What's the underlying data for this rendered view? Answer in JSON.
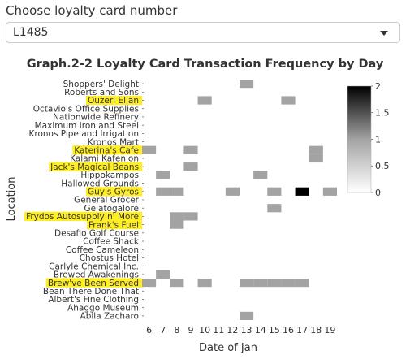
{
  "select": {
    "label": "Choose loyalty card number",
    "value": "L1485"
  },
  "colors": {
    "highlight": "#ffee22",
    "cell_low": "#a3a3a3",
    "cell_high": "#000000",
    "text": "#333333"
  },
  "chart_data": {
    "type": "heatmap",
    "title": "Graph.2-2 Loyalty Card Transaction Frequency by Day",
    "xlabel": "Date of Jan",
    "ylabel": "Location",
    "x": [
      6,
      7,
      8,
      9,
      10,
      11,
      12,
      13,
      14,
      15,
      16,
      17,
      18,
      19
    ],
    "xlim": [
      5.5,
      19.5
    ],
    "y": [
      "Shoppers' Delight",
      "Roberts and Sons",
      "Ouzeri Elian",
      "Octavio's Office Supplies",
      "Nationwide Refinery",
      "Maximum Iron and Steel",
      "Kronos Pipe and Irrigation",
      "Kronos Mart",
      "Katerina's Cafe",
      "Kalami Kafenion",
      "Jack's Magical Beans",
      "Hippokampos",
      "Hallowed Grounds",
      "Guy's Gyros",
      "General Grocer",
      "Gelatogalore",
      "Frydos Autosupply n' More",
      "Frank's Fuel",
      "Desafio Golf Course",
      "Coffee Shack",
      "Coffee Cameleon",
      "Chostus Hotel",
      "Carlyle Chemical Inc.",
      "Brewed Awakenings",
      "Brew've Been Served",
      "Bean There Done That",
      "Albert's Fine Clothing",
      "Ahaggo Museum",
      "Abila Zacharo"
    ],
    "highlighted": [
      "Ouzeri Elian",
      "Katerina's Cafe",
      "Jack's Magical Beans",
      "Guy's Gyros",
      "Frydos Autosupply n' More",
      "Frank's Fuel",
      "Brew've Been Served"
    ],
    "cells": [
      {
        "loc": "Shoppers' Delight",
        "x": 13,
        "v": 1
      },
      {
        "loc": "Ouzeri Elian",
        "x": 10,
        "v": 1
      },
      {
        "loc": "Ouzeri Elian",
        "x": 16,
        "v": 1
      },
      {
        "loc": "Katerina's Cafe",
        "x": 6,
        "v": 1
      },
      {
        "loc": "Katerina's Cafe",
        "x": 9,
        "v": 1
      },
      {
        "loc": "Katerina's Cafe",
        "x": 18,
        "v": 1
      },
      {
        "loc": "Kalami Kafenion",
        "x": 18,
        "v": 1
      },
      {
        "loc": "Jack's Magical Beans",
        "x": 9,
        "v": 1
      },
      {
        "loc": "Hippokampos",
        "x": 7,
        "v": 1
      },
      {
        "loc": "Hippokampos",
        "x": 14,
        "v": 1
      },
      {
        "loc": "Guy's Gyros",
        "x": 7,
        "v": 1
      },
      {
        "loc": "Guy's Gyros",
        "x": 8,
        "v": 1
      },
      {
        "loc": "Guy's Gyros",
        "x": 12,
        "v": 1
      },
      {
        "loc": "Guy's Gyros",
        "x": 15,
        "v": 1
      },
      {
        "loc": "Guy's Gyros",
        "x": 17,
        "v": 2
      },
      {
        "loc": "Guy's Gyros",
        "x": 19,
        "v": 1
      },
      {
        "loc": "Gelatogalore",
        "x": 15,
        "v": 1
      },
      {
        "loc": "Frydos Autosupply n' More",
        "x": 8,
        "v": 1
      },
      {
        "loc": "Frydos Autosupply n' More",
        "x": 9,
        "v": 1
      },
      {
        "loc": "Frank's Fuel",
        "x": 8,
        "v": 1
      },
      {
        "loc": "Brewed Awakenings",
        "x": 7,
        "v": 1
      },
      {
        "loc": "Brew've Been Served",
        "x": 6,
        "v": 1
      },
      {
        "loc": "Brew've Been Served",
        "x": 8,
        "v": 1
      },
      {
        "loc": "Brew've Been Served",
        "x": 10,
        "v": 1
      },
      {
        "loc": "Brew've Been Served",
        "x": 13,
        "v": 1
      },
      {
        "loc": "Brew've Been Served",
        "x": 14,
        "v": 1
      },
      {
        "loc": "Brew've Been Served",
        "x": 15,
        "v": 1
      },
      {
        "loc": "Brew've Been Served",
        "x": 16,
        "v": 1
      },
      {
        "loc": "Brew've Been Served",
        "x": 17,
        "v": 1
      },
      {
        "loc": "Abila Zacharo",
        "x": 13,
        "v": 1
      }
    ],
    "colorbar": {
      "range": [
        0,
        2
      ],
      "ticks": [
        0,
        0.5,
        1,
        1.5,
        2
      ],
      "tick_labels": [
        "0",
        "0.5",
        "1",
        "1.5",
        "2"
      ]
    },
    "legend_position": "right"
  }
}
